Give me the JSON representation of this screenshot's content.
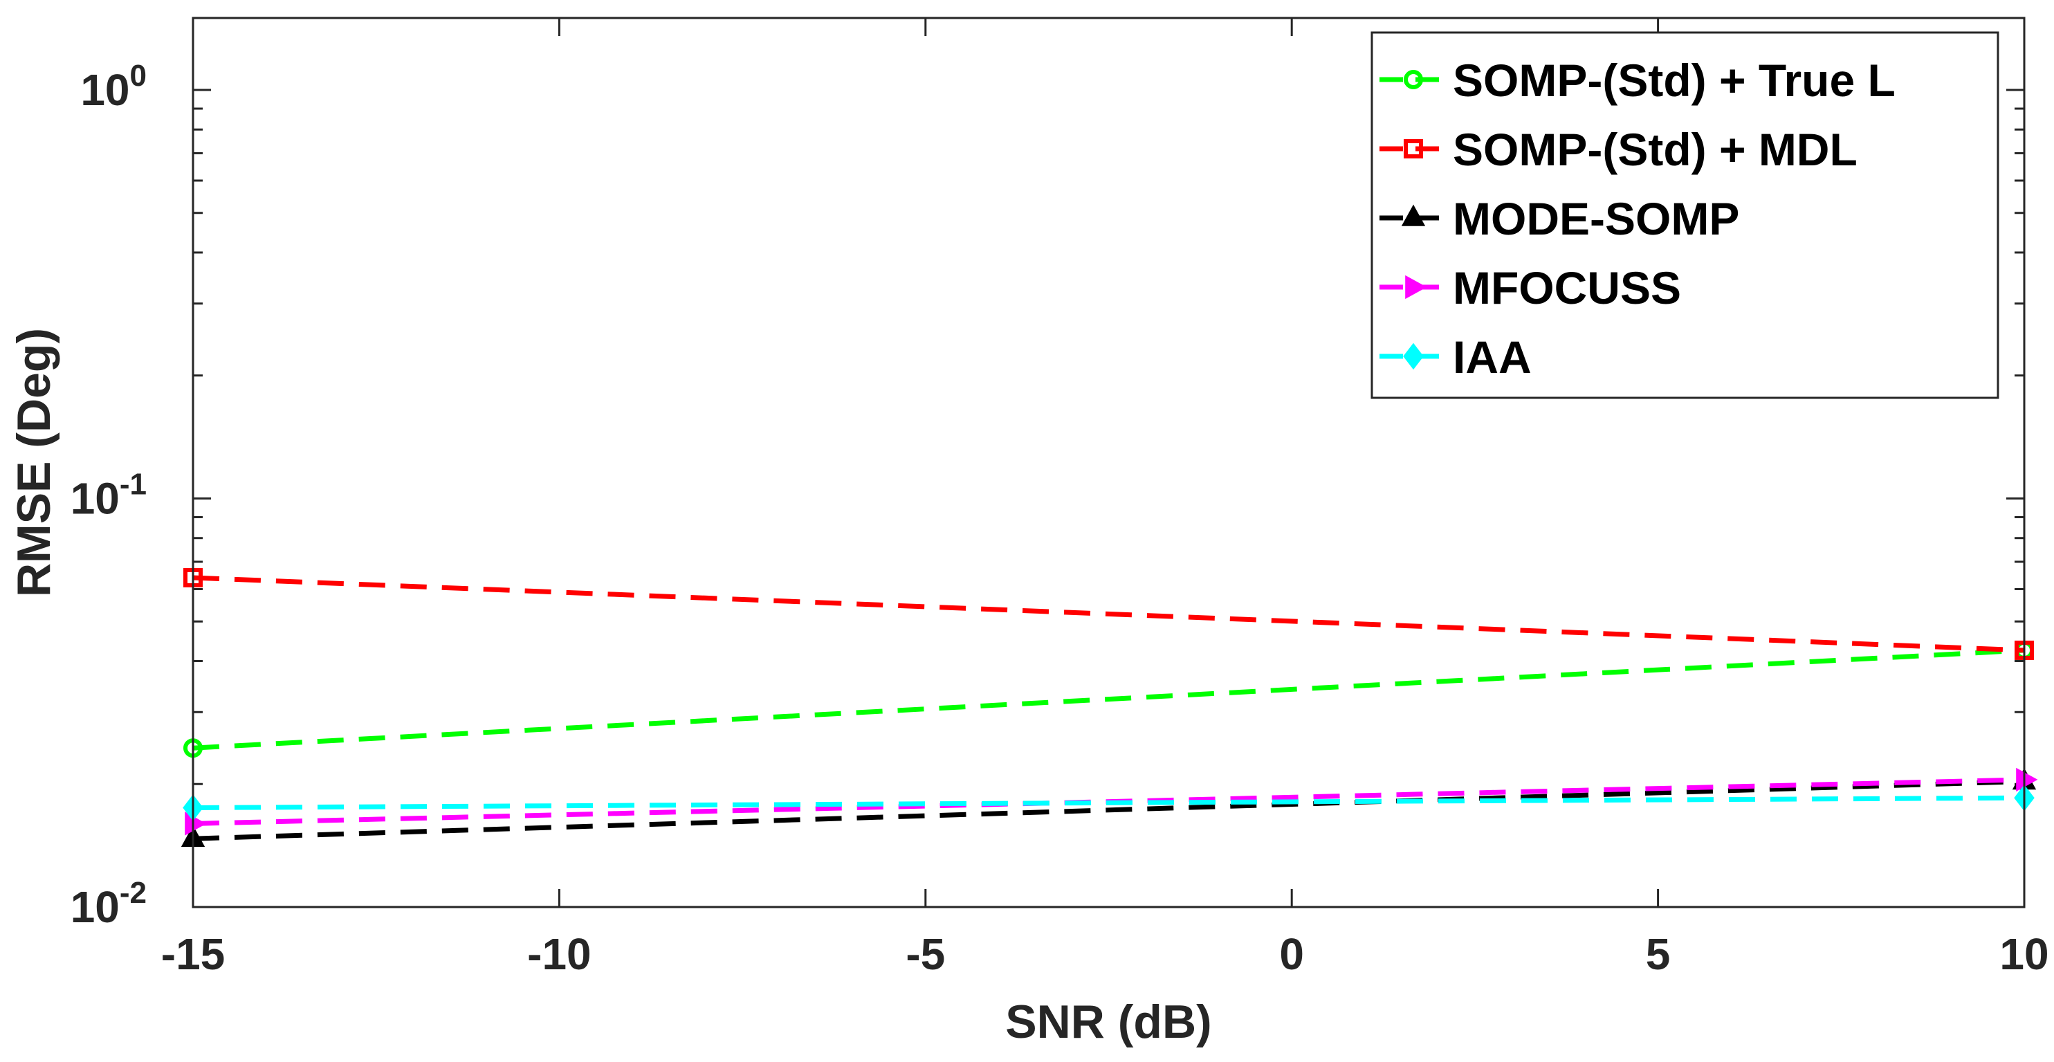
{
  "chart_data": {
    "type": "line",
    "title": "",
    "xlabel": "SNR (dB)",
    "ylabel": "RMSE (Deg)",
    "xscale": "linear",
    "yscale": "log",
    "xlim": [
      -15,
      10
    ],
    "ylim": [
      0.01,
      1.5
    ],
    "xticks": [
      {
        "value": -15,
        "label": "-15"
      },
      {
        "value": -10,
        "label": "-10"
      },
      {
        "value": -5,
        "label": "-5"
      },
      {
        "value": 0,
        "label": "0"
      },
      {
        "value": 5,
        "label": "5"
      },
      {
        "value": 10,
        "label": "10"
      }
    ],
    "yticks": [
      {
        "value": 0.01,
        "base": "10",
        "exp": "-2"
      },
      {
        "value": 0.1,
        "base": "10",
        "exp": "-1"
      },
      {
        "value": 1,
        "base": "10",
        "exp": "0"
      }
    ],
    "legend_position": "top-right",
    "grid": false,
    "x": [
      -15,
      10
    ],
    "series": [
      {
        "name": "SOMP-(Std) + True L",
        "color": "#00ff00",
        "marker": "circle",
        "values": [
          0.0245,
          0.0425
        ]
      },
      {
        "name": "SOMP-(Std) + MDL",
        "color": "#ff0000",
        "marker": "square",
        "values": [
          0.064,
          0.0425
        ]
      },
      {
        "name": "MODE-SOMP",
        "color": "#000000",
        "marker": "triangle-up",
        "values": [
          0.0147,
          0.0203
        ]
      },
      {
        "name": "MFOCUSS",
        "color": "#ff00ff",
        "marker": "triangle-right",
        "values": [
          0.016,
          0.0205
        ]
      },
      {
        "name": "IAA",
        "color": "#00ffff",
        "marker": "diamond",
        "values": [
          0.0175,
          0.0185
        ]
      }
    ]
  }
}
